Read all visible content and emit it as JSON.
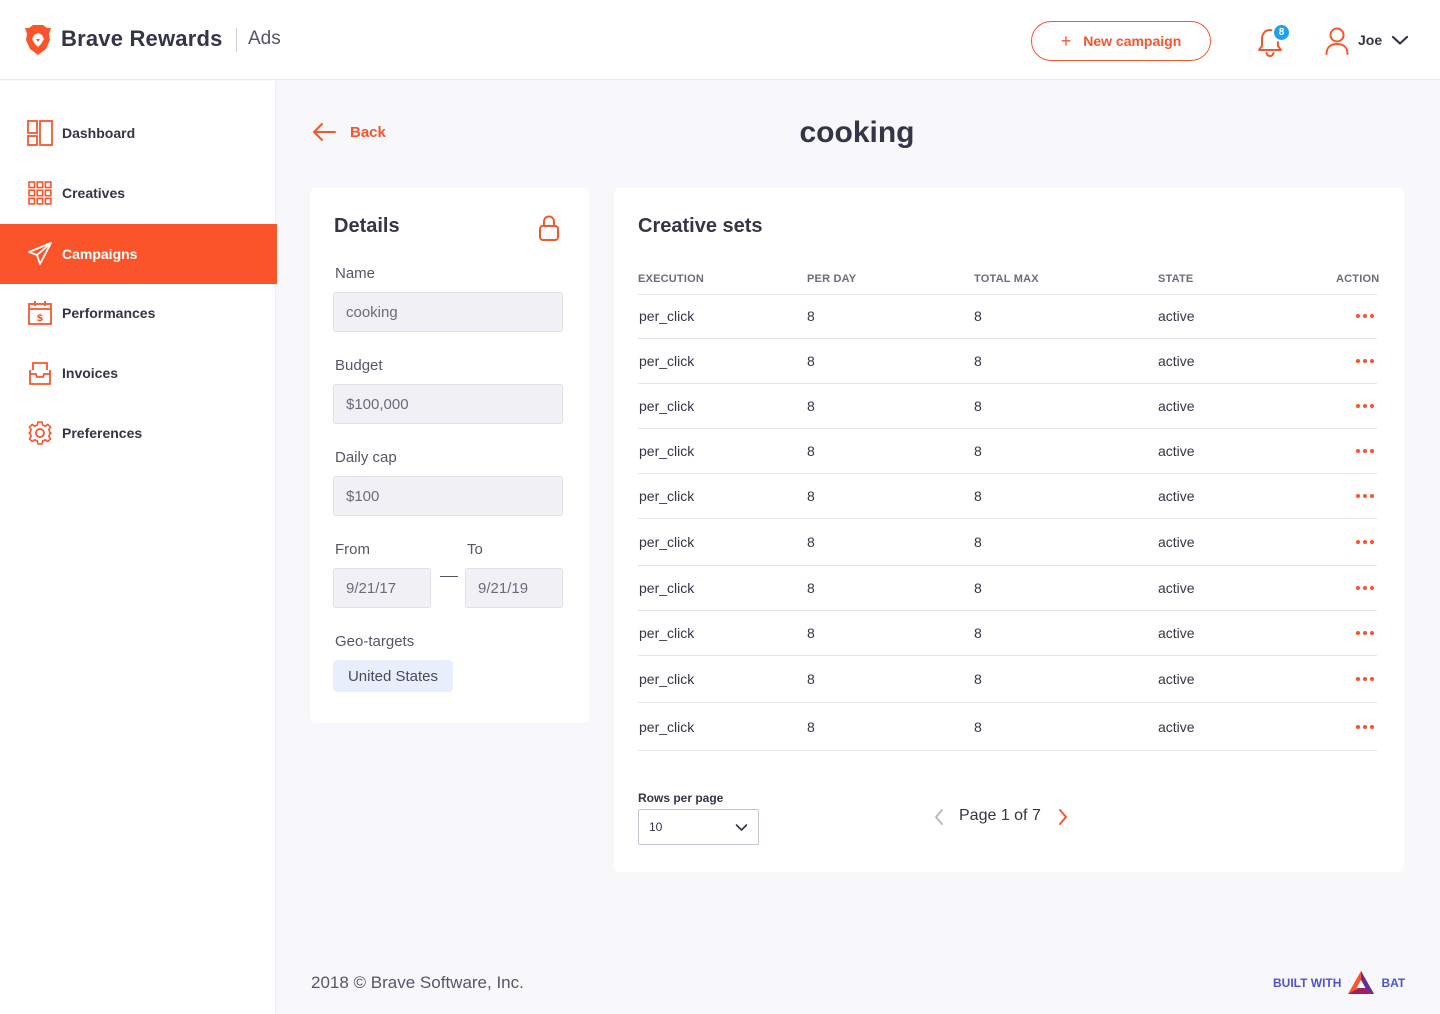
{
  "header": {
    "brand": "Brave Rewards",
    "brand_sub": "Ads",
    "new_campaign_label": "New campaign",
    "notification_count": "8",
    "user_name": "Joe"
  },
  "sidebar": {
    "items": [
      {
        "label": "Dashboard",
        "icon": "dashboard-icon"
      },
      {
        "label": "Creatives",
        "icon": "grid-icon"
      },
      {
        "label": "Campaigns",
        "icon": "paper-plane-icon",
        "active": true
      },
      {
        "label": "Performances",
        "icon": "calendar-dollar-icon"
      },
      {
        "label": "Invoices",
        "icon": "inbox-icon"
      },
      {
        "label": "Preferences",
        "icon": "gear-icon"
      }
    ]
  },
  "main": {
    "back_label": "Back",
    "title": "cooking"
  },
  "details": {
    "title": "Details",
    "name_label": "Name",
    "name_value": "cooking",
    "budget_label": "Budget",
    "budget_value": "$100,000",
    "daily_cap_label": "Daily cap",
    "daily_cap_value": "$100",
    "from_label": "From",
    "from_value": "9/21/17",
    "to_label": "To",
    "to_value": "9/21/19",
    "geo_label": "Geo-targets",
    "geo_value": "United States"
  },
  "creative_sets": {
    "title": "Creative sets",
    "columns": [
      "EXECUTION",
      "PER DAY",
      "TOTAL MAX",
      "STATE",
      "ACTION"
    ],
    "rows": [
      {
        "execution": "per_click",
        "per_day": "8",
        "total_max": "8",
        "state": "active"
      },
      {
        "execution": "per_click",
        "per_day": "8",
        "total_max": "8",
        "state": "active"
      },
      {
        "execution": "per_click",
        "per_day": "8",
        "total_max": "8",
        "state": "active"
      },
      {
        "execution": "per_click",
        "per_day": "8",
        "total_max": "8",
        "state": "active"
      },
      {
        "execution": "per_click",
        "per_day": "8",
        "total_max": "8",
        "state": "active"
      },
      {
        "execution": "per_click",
        "per_day": "8",
        "total_max": "8",
        "state": "active"
      },
      {
        "execution": "per_click",
        "per_day": "8",
        "total_max": "8",
        "state": "active"
      },
      {
        "execution": "per_click",
        "per_day": "8",
        "total_max": "8",
        "state": "active"
      },
      {
        "execution": "per_click",
        "per_day": "8",
        "total_max": "8",
        "state": "active"
      },
      {
        "execution": "per_click",
        "per_day": "8",
        "total_max": "8",
        "state": "active"
      }
    ],
    "rows_per_page_label": "Rows per page",
    "rows_per_page_value": "10",
    "page_text": "Page 1 of 7"
  },
  "footer": {
    "copyright": "2018 © Brave Software, Inc.",
    "built_with": "BUILT WITH",
    "bat": "BAT"
  },
  "colors": {
    "accent": "#fb542b",
    "badge": "#1fa0f2",
    "bat_blue": "#4c54d2"
  }
}
